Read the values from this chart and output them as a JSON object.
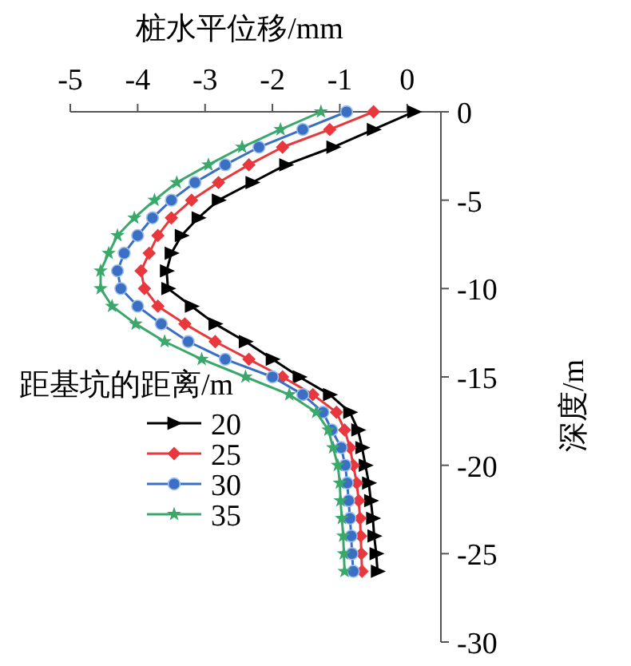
{
  "chart_data": {
    "type": "line",
    "xlabel": "桩水平位移/mm",
    "ylabel": "深度/m",
    "legend_title": "距基坑的距离/m",
    "legend": "left",
    "xlim": [
      -5,
      0.5
    ],
    "xticks": [
      -5,
      -4,
      -3,
      -2,
      -1,
      0
    ],
    "ylim": [
      -30,
      0
    ],
    "yticks": [
      0,
      -5,
      -10,
      -15,
      -20,
      -25,
      -30
    ],
    "line_style": "solid",
    "series": [
      {
        "name": "20",
        "color": "#000000",
        "marker": "triangle",
        "x": [
          0.1,
          -0.5,
          -1.1,
          -1.8,
          -2.3,
          -2.8,
          -3.1,
          -3.35,
          -3.5,
          -3.57,
          -3.55,
          -3.2,
          -2.85,
          -2.4,
          -2.0,
          -1.6,
          -1.15,
          -0.85,
          -0.73,
          -0.67,
          -0.62,
          -0.57,
          -0.54,
          -0.51,
          -0.49,
          -0.46,
          -0.44
        ],
        "values": [
          0,
          -1,
          -2,
          -3,
          -4,
          -5,
          -6,
          -7,
          -8,
          -9,
          -10,
          -11,
          -12,
          -13,
          -14,
          -15,
          -16,
          -17,
          -18,
          -19,
          -20,
          -21,
          -22,
          -23,
          -24,
          -25,
          -26
        ]
      },
      {
        "name": "25",
        "color": "#e8383d",
        "marker": "diamond",
        "x": [
          -0.5,
          -1.15,
          -1.85,
          -2.35,
          -2.8,
          -3.2,
          -3.5,
          -3.7,
          -3.83,
          -3.95,
          -3.9,
          -3.7,
          -3.3,
          -2.85,
          -2.35,
          -1.85,
          -1.4,
          -1.05,
          -0.93,
          -0.85,
          -0.8,
          -0.75,
          -0.72,
          -0.7,
          -0.69,
          -0.68,
          -0.67
        ],
        "values": [
          0,
          -1,
          -2,
          -3,
          -4,
          -5,
          -6,
          -7,
          -8,
          -9,
          -10,
          -11,
          -12,
          -13,
          -14,
          -15,
          -16,
          -17,
          -18,
          -19,
          -20,
          -21,
          -22,
          -23,
          -24,
          -25,
          -26
        ]
      },
      {
        "name": "30",
        "color": "#3a6fc4",
        "marker": "circle",
        "x": [
          -0.9,
          -1.55,
          -2.2,
          -2.7,
          -3.15,
          -3.5,
          -3.78,
          -4.0,
          -4.2,
          -4.3,
          -4.25,
          -4.0,
          -3.65,
          -3.25,
          -2.7,
          -2.0,
          -1.55,
          -1.25,
          -1.12,
          -0.98,
          -0.92,
          -0.89,
          -0.87,
          -0.85,
          -0.83,
          -0.82,
          -0.8
        ],
        "values": [
          0,
          -1,
          -2,
          -3,
          -4,
          -5,
          -6,
          -7,
          -8,
          -9,
          -10,
          -11,
          -12,
          -13,
          -14,
          -15,
          -16,
          -17,
          -18,
          -19,
          -20,
          -21,
          -22,
          -23,
          -24,
          -25,
          -26
        ]
      },
      {
        "name": "35",
        "color": "#3aa86a",
        "marker": "star",
        "x": [
          -1.28,
          -1.88,
          -2.45,
          -2.95,
          -3.42,
          -3.75,
          -4.05,
          -4.3,
          -4.43,
          -4.55,
          -4.55,
          -4.38,
          -4.03,
          -3.6,
          -3.05,
          -2.4,
          -1.75,
          -1.35,
          -1.17,
          -1.1,
          -1.03,
          -1.0,
          -0.99,
          -0.97,
          -0.95,
          -0.94,
          -0.93
        ],
        "values": [
          0,
          -1,
          -2,
          -3,
          -4,
          -5,
          -6,
          -7,
          -8,
          -9,
          -10,
          -11,
          -12,
          -13,
          -14,
          -15,
          -16,
          -17,
          -18,
          -19,
          -20,
          -21,
          -22,
          -23,
          -24,
          -25,
          -26
        ]
      }
    ]
  }
}
